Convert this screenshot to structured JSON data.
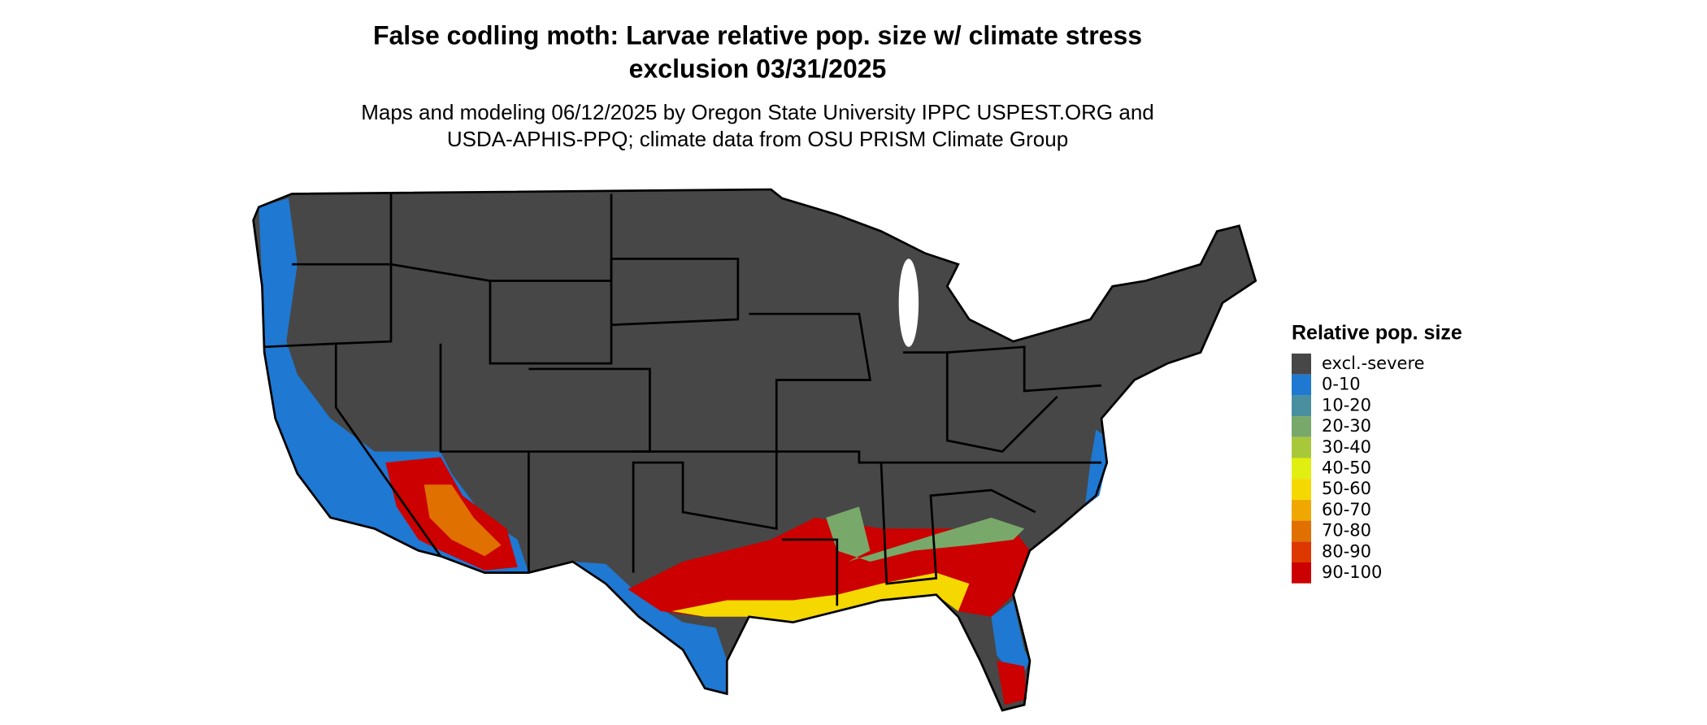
{
  "header": {
    "title_lines": [
      "False codling moth: Larvae relative pop. size w/ climate stress",
      "exclusion 03/31/2025"
    ],
    "subtitle_lines": [
      "Maps and modeling 06/12/2025 by Oregon State University IPPC USPEST.ORG and",
      "USDA-APHIS-PPQ; climate data from OSU PRISM Climate Group"
    ]
  },
  "legend": {
    "title": "Relative pop. size",
    "items": [
      {
        "label": "excl.-severe",
        "color": "#474747"
      },
      {
        "label": "0-10",
        "color": "#1f78d1"
      },
      {
        "label": "10-20",
        "color": "#4a8fa0"
      },
      {
        "label": "20-30",
        "color": "#78a86a"
      },
      {
        "label": "30-40",
        "color": "#a8c83a"
      },
      {
        "label": "40-50",
        "color": "#e0ee10"
      },
      {
        "label": "50-60",
        "color": "#f5d800"
      },
      {
        "label": "60-70",
        "color": "#f0a800"
      },
      {
        "label": "70-80",
        "color": "#e07000"
      },
      {
        "label": "80-90",
        "color": "#dd3800"
      },
      {
        "label": "90-100",
        "color": "#cc0000"
      }
    ]
  }
}
